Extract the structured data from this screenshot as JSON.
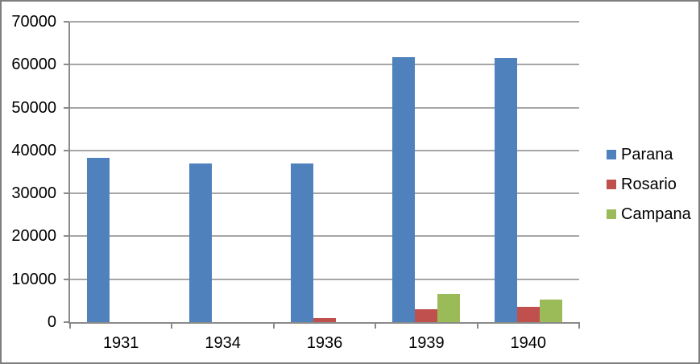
{
  "chart_data": {
    "type": "bar",
    "title": "",
    "xlabel": "",
    "ylabel": "",
    "categories": [
      "1931",
      "1934",
      "1936",
      "1939",
      "1940"
    ],
    "series": [
      {
        "name": "Parana",
        "color": "#4F81BD",
        "values": [
          38200,
          36900,
          37000,
          61700,
          61500
        ]
      },
      {
        "name": "Rosario",
        "color": "#C0504D",
        "values": [
          0,
          0,
          900,
          3000,
          3500
        ]
      },
      {
        "name": "Campana",
        "color": "#9BBB59",
        "values": [
          0,
          0,
          0,
          6600,
          5300
        ]
      }
    ],
    "ylim": [
      0,
      70000
    ],
    "ytick_step": 10000,
    "yticks": [
      "0",
      "10000",
      "20000",
      "30000",
      "40000",
      "50000",
      "60000",
      "70000"
    ],
    "grid": true,
    "legend_position": "right"
  },
  "style": {
    "background": "#FFFFFF",
    "border_color": "#7F7F7F",
    "gridline_color": "#A6A6A6",
    "axis_color": "#8A8A8A",
    "text_color": "#000000"
  }
}
